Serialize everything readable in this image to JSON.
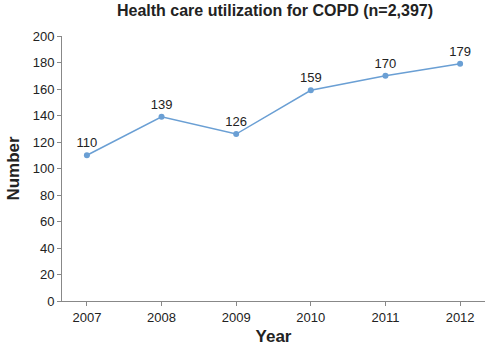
{
  "chart_data": {
    "type": "line",
    "title": "Health care utilization for COPD (n=2,397)",
    "x_label": "Year",
    "y_label": "Number",
    "categories": [
      "2007",
      "2008",
      "2009",
      "2010",
      "2011",
      "2012"
    ],
    "values": [
      110,
      139,
      126,
      159,
      170,
      179
    ],
    "color": "#6a9fd4",
    "marker": "circle",
    "ylim": [
      0,
      200
    ],
    "yticks": [
      0,
      20,
      40,
      60,
      80,
      100,
      120,
      140,
      160,
      180,
      200
    ],
    "grid": false,
    "data_labels": true
  }
}
